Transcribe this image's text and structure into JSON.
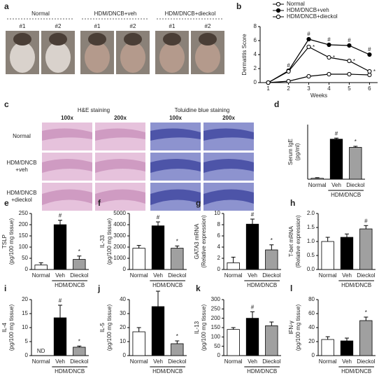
{
  "panels": {
    "a": {
      "letter": "a",
      "groups": [
        {
          "label": "Normal",
          "shots": [
            "#1",
            "#2"
          ]
        },
        {
          "label": "HDM/DNCB+veh",
          "shots": [
            "#1",
            "#2"
          ]
        },
        {
          "label": "HDM/DNCB+dieckol",
          "shots": [
            "#1",
            "#2"
          ]
        }
      ]
    },
    "c": {
      "letter": "c",
      "stains": [
        {
          "label": "H&E staining",
          "mags": [
            "100x",
            "200x"
          ]
        },
        {
          "label": "Toluidine blue staining",
          "mags": [
            "100x",
            "200x"
          ]
        }
      ],
      "rows": [
        [
          "Normal"
        ],
        [
          "HDM/DNCB",
          "+veh"
        ],
        [
          "HDM/DNCB",
          "+dieckol"
        ]
      ]
    }
  },
  "chart_data": [
    {
      "type": "line",
      "letter": "b",
      "ylabel": "Dermatitis Score",
      "xlabel": "Weeks",
      "x": [
        1,
        2,
        3,
        4,
        5,
        6
      ],
      "xlim": [
        0.6,
        6.4
      ],
      "xticks": [
        1,
        2,
        3,
        4,
        5,
        6
      ],
      "ylim": [
        0,
        8
      ],
      "yticks": [
        0,
        2,
        4,
        6,
        8
      ],
      "series": [
        {
          "name": "Normal",
          "color": "#000000",
          "marker_fill": "#ffffff",
          "values": [
            0,
            0.2,
            0.9,
            1.2,
            1.2,
            1.1
          ]
        },
        {
          "name": "HDM/DNCB+veh",
          "color": "#000000",
          "marker_fill": "#000000",
          "values": [
            0,
            1.7,
            6.2,
            5.4,
            5.3,
            4.0
          ],
          "annotations": [
            null,
            "#",
            "#",
            "#",
            "#",
            "#"
          ]
        },
        {
          "name": "HDM/DNCB+dieckol",
          "color": "#000000",
          "marker_fill": "#ffffff",
          "values": [
            0,
            1.6,
            5.1,
            3.6,
            3.1,
            1.6
          ],
          "annotations": [
            null,
            null,
            "*",
            "*",
            "*",
            "*"
          ]
        }
      ]
    },
    {
      "type": "bar",
      "letter": "d",
      "ylabel": [
        "Serum IgE",
        "(pg/ml)"
      ],
      "categories": [
        "Normal",
        "Veh",
        "Dieckol"
      ],
      "group_label": "HDM/DNCB",
      "colors": [
        "#ffffff",
        "#000000",
        "#a0a0a0"
      ],
      "ylim": [
        0,
        30
      ],
      "values": [
        0.5,
        22,
        17.5
      ],
      "errors": [
        0.3,
        0.6,
        0.6
      ],
      "annotations": [
        null,
        "#",
        "*"
      ]
    },
    {
      "type": "bar",
      "letter": "e",
      "ylabel": [
        "TSLP",
        "(pg/100 mg tissue)"
      ],
      "categories": [
        "Normal",
        "Veh",
        "Dieckol"
      ],
      "group_label": "HDM/DNCB",
      "colors": [
        "#ffffff",
        "#000000",
        "#a0a0a0"
      ],
      "ylim": [
        0,
        250
      ],
      "yticks": [
        0,
        50,
        100,
        150,
        200,
        250
      ],
      "values": [
        20,
        200,
        45
      ],
      "errors": [
        10,
        20,
        15
      ],
      "annotations": [
        null,
        "#",
        "*"
      ]
    },
    {
      "type": "bar",
      "letter": "f",
      "ylabel": [
        "IL-33",
        "(pg/100 mg tissue)"
      ],
      "categories": [
        "Normal",
        "Veh",
        "Dieckol"
      ],
      "group_label": "HDM/DNCB",
      "colors": [
        "#ffffff",
        "#000000",
        "#a0a0a0"
      ],
      "ylim": [
        0,
        5000
      ],
      "yticks": [
        0,
        1000,
        2000,
        3000,
        4000,
        5000
      ],
      "values": [
        1900,
        3900,
        1900
      ],
      "errors": [
        250,
        350,
        200
      ],
      "annotations": [
        null,
        "#",
        "*"
      ]
    },
    {
      "type": "bar",
      "letter": "g",
      "ylabel": [
        "GATA3 mRNA",
        "(Relative expression)"
      ],
      "categories": [
        "Normal",
        "Veh",
        "Dieckol"
      ],
      "group_label": "HDM/DNCB",
      "colors": [
        "#ffffff",
        "#000000",
        "#a0a0a0"
      ],
      "ylim": [
        0,
        10
      ],
      "yticks": [
        0,
        2,
        4,
        6,
        8,
        10
      ],
      "values": [
        1.2,
        8.1,
        3.5
      ],
      "errors": [
        1.0,
        0.9,
        0.9
      ],
      "annotations": [
        null,
        "#",
        "*"
      ]
    },
    {
      "type": "bar",
      "letter": "h",
      "ylabel": [
        "T-bet mRNA",
        "(Relative expression)"
      ],
      "categories": [
        "Normal",
        "Veh",
        "Dieckol"
      ],
      "group_label": "HDM/DNCB",
      "colors": [
        "#ffffff",
        "#000000",
        "#a0a0a0"
      ],
      "ylim": [
        0,
        2
      ],
      "yticks": [
        {
          "value": 0,
          "label": "0.0"
        },
        {
          "value": 0.5,
          "label": "0.5"
        },
        {
          "value": 1,
          "label": "1.0"
        },
        {
          "value": 1.5,
          "label": "1.5"
        },
        {
          "value": 2,
          "label": "2.0"
        }
      ],
      "values": [
        1.0,
        1.15,
        1.45
      ],
      "errors": [
        0.15,
        0.12,
        0.12
      ],
      "annotations": [
        null,
        null,
        "#"
      ]
    },
    {
      "type": "bar",
      "letter": "i",
      "ylabel": [
        "IL-4",
        "(pg/100 mg tissue)"
      ],
      "categories": [
        "Normal",
        "Veh",
        "Dieckol"
      ],
      "group_label": "HDM/DNCB",
      "colors": [
        "#ffffff",
        "#000000",
        "#a0a0a0"
      ],
      "ylim": [
        0,
        20
      ],
      "yticks": [
        0,
        5,
        10,
        15,
        20
      ],
      "values": [
        null,
        13.5,
        3.0
      ],
      "errors": [
        null,
        4.5,
        0.4
      ],
      "annotations": [
        "ND",
        "#",
        "*"
      ]
    },
    {
      "type": "bar",
      "letter": "j",
      "ylabel": [
        "IL-5",
        "(pg/100 mg tissue)"
      ],
      "categories": [
        "Normal",
        "Veh",
        "Dieckol"
      ],
      "group_label": "HDM/DNCB",
      "colors": [
        "#ffffff",
        "#000000",
        "#a0a0a0"
      ],
      "ylim": [
        0,
        40
      ],
      "yticks": [
        0,
        10,
        20,
        30,
        40
      ],
      "values": [
        17,
        35,
        8.5
      ],
      "errors": [
        3,
        11,
        2
      ],
      "annotations": [
        null,
        null,
        "*"
      ]
    },
    {
      "type": "bar",
      "letter": "k",
      "ylabel": [
        "IL-13",
        "(pg/100 mg tissue)"
      ],
      "categories": [
        "Normal",
        "Veh",
        "Dieckol"
      ],
      "group_label": "HDM/DNCB",
      "colors": [
        "#ffffff",
        "#000000",
        "#a0a0a0"
      ],
      "ylim": [
        0,
        300
      ],
      "yticks": [
        0,
        50,
        100,
        150,
        200,
        250,
        300
      ],
      "values": [
        140,
        200,
        160
      ],
      "errors": [
        10,
        35,
        20
      ],
      "annotations": [
        null,
        "#",
        null
      ]
    },
    {
      "type": "bar",
      "letter": "l",
      "ylabel": [
        "IFN-γ",
        "(pg/100 mg tissue)"
      ],
      "categories": [
        "Normal",
        "Veh",
        "Dieckol"
      ],
      "group_label": "HDM/DNCB",
      "colors": [
        "#ffffff",
        "#000000",
        "#a0a0a0"
      ],
      "ylim": [
        0,
        80
      ],
      "yticks": [
        0,
        20,
        40,
        60,
        80
      ],
      "values": [
        23,
        21,
        50
      ],
      "errors": [
        4,
        4,
        5
      ],
      "annotations": [
        null,
        null,
        "*"
      ]
    }
  ]
}
